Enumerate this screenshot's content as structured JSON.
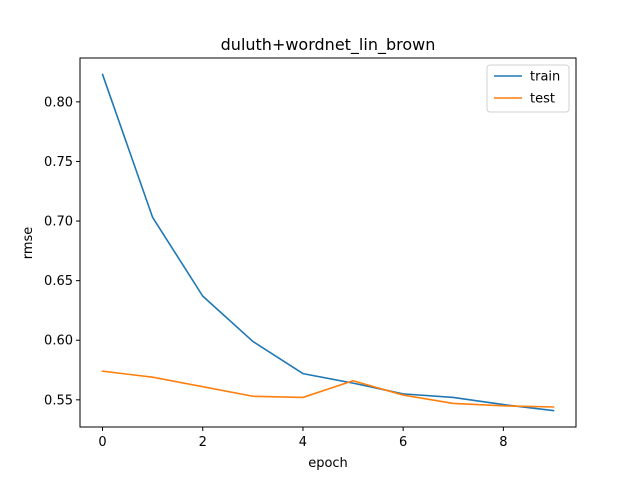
{
  "chart_data": {
    "type": "line",
    "title": "duluth+wordnet_lin_brown",
    "xlabel": "epoch",
    "ylabel": "rmse",
    "x": [
      0,
      1,
      2,
      3,
      4,
      5,
      6,
      7,
      8,
      9
    ],
    "series": [
      {
        "name": "train",
        "color": "#1f77b4",
        "values": [
          0.823,
          0.703,
          0.637,
          0.599,
          0.572,
          0.564,
          0.555,
          0.552,
          0.546,
          0.541
        ]
      },
      {
        "name": "test",
        "color": "#ff7f0e",
        "values": [
          0.574,
          0.569,
          0.561,
          0.553,
          0.552,
          0.566,
          0.554,
          0.547,
          0.545,
          0.544
        ]
      }
    ],
    "xlim": [
      -0.45,
      9.45
    ],
    "ylim": [
      0.5272,
      0.8368
    ],
    "xticks": [
      0,
      2,
      4,
      6,
      8
    ],
    "xtick_labels": [
      "0",
      "2",
      "4",
      "6",
      "8"
    ],
    "yticks": [
      0.55,
      0.6,
      0.65,
      0.7,
      0.75,
      0.8
    ],
    "ytick_labels": [
      "0.55",
      "0.60",
      "0.65",
      "0.70",
      "0.75",
      "0.80"
    ],
    "grid": false,
    "legend": "top-right"
  }
}
